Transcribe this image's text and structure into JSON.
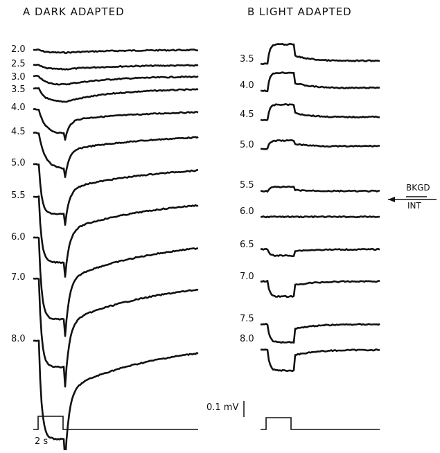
{
  "panel_a": {
    "title": "A  DARK ADAPTED",
    "traces": [
      {
        "label": "2.0"
      },
      {
        "label": "2.5"
      },
      {
        "label": "3.0"
      },
      {
        "label": "3.5"
      },
      {
        "label": "4.0"
      },
      {
        "label": "4.5"
      },
      {
        "label": "5.0"
      },
      {
        "label": "5.5"
      },
      {
        "label": "6.0"
      },
      {
        "label": "7.0"
      },
      {
        "label": "8.0"
      }
    ]
  },
  "panel_b": {
    "title": "B  LIGHT ADAPTED",
    "traces": [
      {
        "label": "3.5"
      },
      {
        "label": "4.0"
      },
      {
        "label": "4.5"
      },
      {
        "label": "5.0"
      },
      {
        "label": "5.5"
      },
      {
        "label": "6.0"
      },
      {
        "label": "6.5"
      },
      {
        "label": "7.0"
      },
      {
        "label": "7.5"
      },
      {
        "label": "8.0"
      }
    ]
  },
  "background_marker": {
    "top": "BKGD",
    "bottom": "INT"
  },
  "scale_bar": {
    "label": "0.1 mV"
  },
  "time_bar": {
    "label": "2 s"
  }
}
